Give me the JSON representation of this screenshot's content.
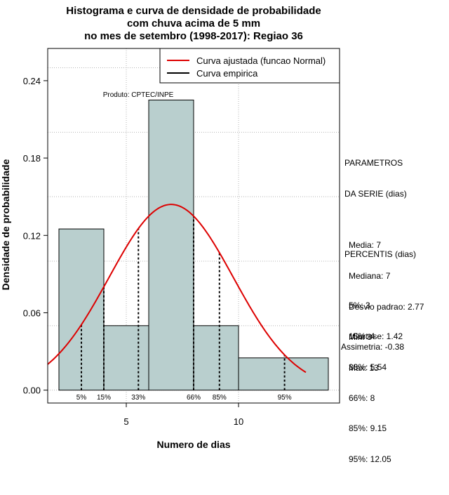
{
  "chart_data": {
    "type": "bar",
    "title_lines": [
      "Histograma e curva de densidade de probabilidade",
      "com chuva acima de 5 mm",
      "no mes de setembro (1998-2017): Regiao 36"
    ],
    "xlabel": "Numero de dias",
    "ylabel": "Densidade de probabilidade",
    "xlim": [
      1.5,
      14.5
    ],
    "ylim": [
      -0.01,
      0.265
    ],
    "x_ticks": [
      5,
      10
    ],
    "y_ticks": [
      0.0,
      0.06,
      0.12,
      0.18,
      0.24
    ],
    "y_tick_labels": [
      "0.00",
      "0.06",
      "0.12",
      "0.18",
      "0.24"
    ],
    "grid": true,
    "bins": [
      {
        "from": 2,
        "to": 4,
        "density": 0.125
      },
      {
        "from": 4,
        "to": 6,
        "density": 0.05
      },
      {
        "from": 6,
        "to": 8,
        "density": 0.225
      },
      {
        "from": 8,
        "to": 10,
        "density": 0.05
      },
      {
        "from": 10,
        "to": 14,
        "density": 0.025
      }
    ],
    "bar_color": "#b9cfce",
    "curve_color": "#dd0000",
    "normal_fit": {
      "mean": 7,
      "sd": 2.77,
      "x_from": 1.5,
      "x_to": 13
    },
    "percentile_marks": [
      {
        "label": "5%",
        "x": 3
      },
      {
        "label": "15%",
        "x": 4
      },
      {
        "label": "33%",
        "x": 5.54
      },
      {
        "label": "66%",
        "x": 8
      },
      {
        "label": "85%",
        "x": 9.15
      },
      {
        "label": "95%",
        "x": 12.05
      }
    ],
    "legend": {
      "position": "top-right",
      "entries": [
        {
          "label": "Curva ajustada (funcao Normal)",
          "color": "#dd0000"
        },
        {
          "label": "Curva empirica",
          "color": "#000000"
        }
      ]
    },
    "credit": "Produto: CPTEC/INPE"
  },
  "side_panel": {
    "parametros_title": "PARAMETROS",
    "parametros_subtitle": "DA SERIE (dias)",
    "parametros": [
      "Media: 7",
      "Mediana: 7",
      "Desvio padrao: 2.77",
      "Min: 3",
      "Max: 13"
    ],
    "percentis_title": "PERCENTIS (dias)",
    "percentis": [
      "5%: 3",
      "15%: 4",
      "33%: 5.54",
      "66%: 8",
      "85%: 9.15",
      "95%: 12.05"
    ],
    "curtose": "Curtose: 1.42",
    "assimetria": "Assimetria: -0.38"
  }
}
